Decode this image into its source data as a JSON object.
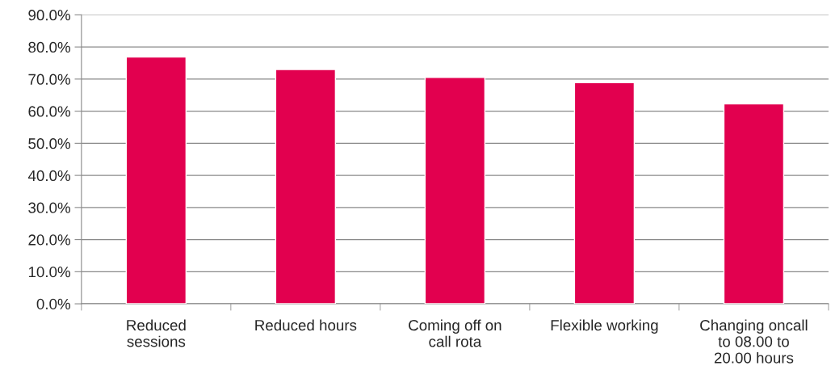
{
  "chart_data": {
    "type": "bar",
    "categories": [
      "Reduced\nsessions",
      "Reduced hours",
      "Coming off on\ncall rota",
      "Flexible working",
      "Changing oncall\nto 08.00 to\n20.00 hours"
    ],
    "values": [
      76.9,
      73.0,
      70.5,
      68.9,
      62.3
    ],
    "color": "#e2004f",
    "ylim": [
      0,
      90
    ],
    "yticks": [
      {
        "value": 0,
        "label": "0.0%"
      },
      {
        "value": 10,
        "label": "10.0%"
      },
      {
        "value": 20,
        "label": "20.0%"
      },
      {
        "value": 30,
        "label": "30.0%"
      },
      {
        "value": 40,
        "label": "40.0%"
      },
      {
        "value": 50,
        "label": "50.0%"
      },
      {
        "value": 60,
        "label": "60.0%"
      },
      {
        "value": 70,
        "label": "70.0%"
      },
      {
        "value": 80,
        "label": "80.0%"
      },
      {
        "value": 90,
        "label": "90.0%"
      }
    ],
    "grid": "y",
    "legend": false
  }
}
